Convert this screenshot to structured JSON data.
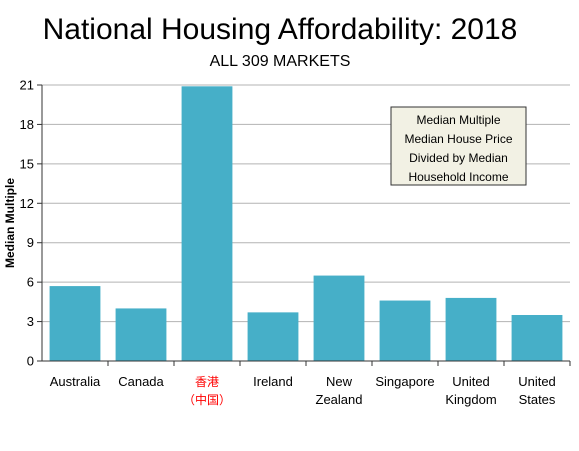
{
  "title": "National Housing Affordability: 2018",
  "subtitle": "ALL 309 MARKETS",
  "note": {
    "lines": [
      "Median Multiple",
      "Median House Price",
      "Divided by Median",
      "Household Income"
    ],
    "background": "#f2f1e4"
  },
  "colors": {
    "bar": "#46afc8",
    "grid": "#b3b3b3",
    "axis": "#333333",
    "highlight_label": "#ff0000"
  },
  "chart_data": {
    "type": "bar",
    "categories": [
      [
        "Australia"
      ],
      [
        "Canada"
      ],
      [
        "香港",
        "（中国）"
      ],
      [
        "Ireland"
      ],
      [
        "New",
        "Zealand"
      ],
      [
        "Singapore"
      ],
      [
        "United",
        "Kingdom"
      ],
      [
        "United",
        "States"
      ]
    ],
    "highlight_index": 2,
    "values": [
      5.7,
      4.0,
      20.9,
      3.7,
      6.5,
      4.6,
      4.8,
      3.5
    ],
    "ylabel": "Median Multiple",
    "xlabel": "",
    "ylim": [
      0,
      21
    ],
    "yticks": [
      0,
      3,
      6,
      9,
      12,
      15,
      18,
      21
    ],
    "grid": true,
    "legend": "none"
  }
}
